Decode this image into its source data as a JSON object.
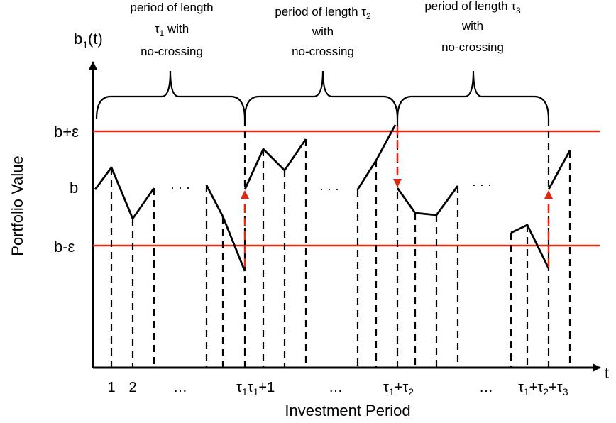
{
  "axes": {
    "y_label": "b",
    "y_label_sub": "1",
    "y_label_tail": "(t)",
    "x_label": "t",
    "y_title": "Portfolio Value",
    "x_title": "Investment Period"
  },
  "levels": {
    "upper": "b+ε",
    "mid": "b",
    "lower": "b-ε"
  },
  "braces": [
    {
      "line1": "period of length",
      "line2_sym": "τ",
      "line2_sub": "1",
      "line2_tail": " with",
      "line3": "no-crossing"
    },
    {
      "line1": "period of length τ",
      "line1_sub": "2",
      "line2": "with",
      "line3": "no-crossing"
    },
    {
      "line1": "period of length τ",
      "line1_sub": "3",
      "line2": "with",
      "line3": "no-crossing"
    }
  ],
  "ticks": {
    "t1": "1",
    "t2": "2",
    "dots": "…",
    "tau1_a": "τ",
    "tau1_a_sub": "1",
    "tau1_b": "τ",
    "tau1_b_sub": "1",
    "tau1_b_tail": "+1",
    "tau12": "τ",
    "tau12_sub1": "1",
    "tau12_mid": "+τ",
    "tau12_sub2": "2",
    "tau123": "τ",
    "tau123_sub1": "1",
    "tau123_mid1": "+τ",
    "tau123_sub2": "2",
    "tau123_mid2": "+τ",
    "tau123_sub3": "3"
  },
  "inline_dots": "· · ·",
  "colors": {
    "threshold": "#e02a12",
    "arrow": "#e02a12",
    "line": "#000000"
  }
}
